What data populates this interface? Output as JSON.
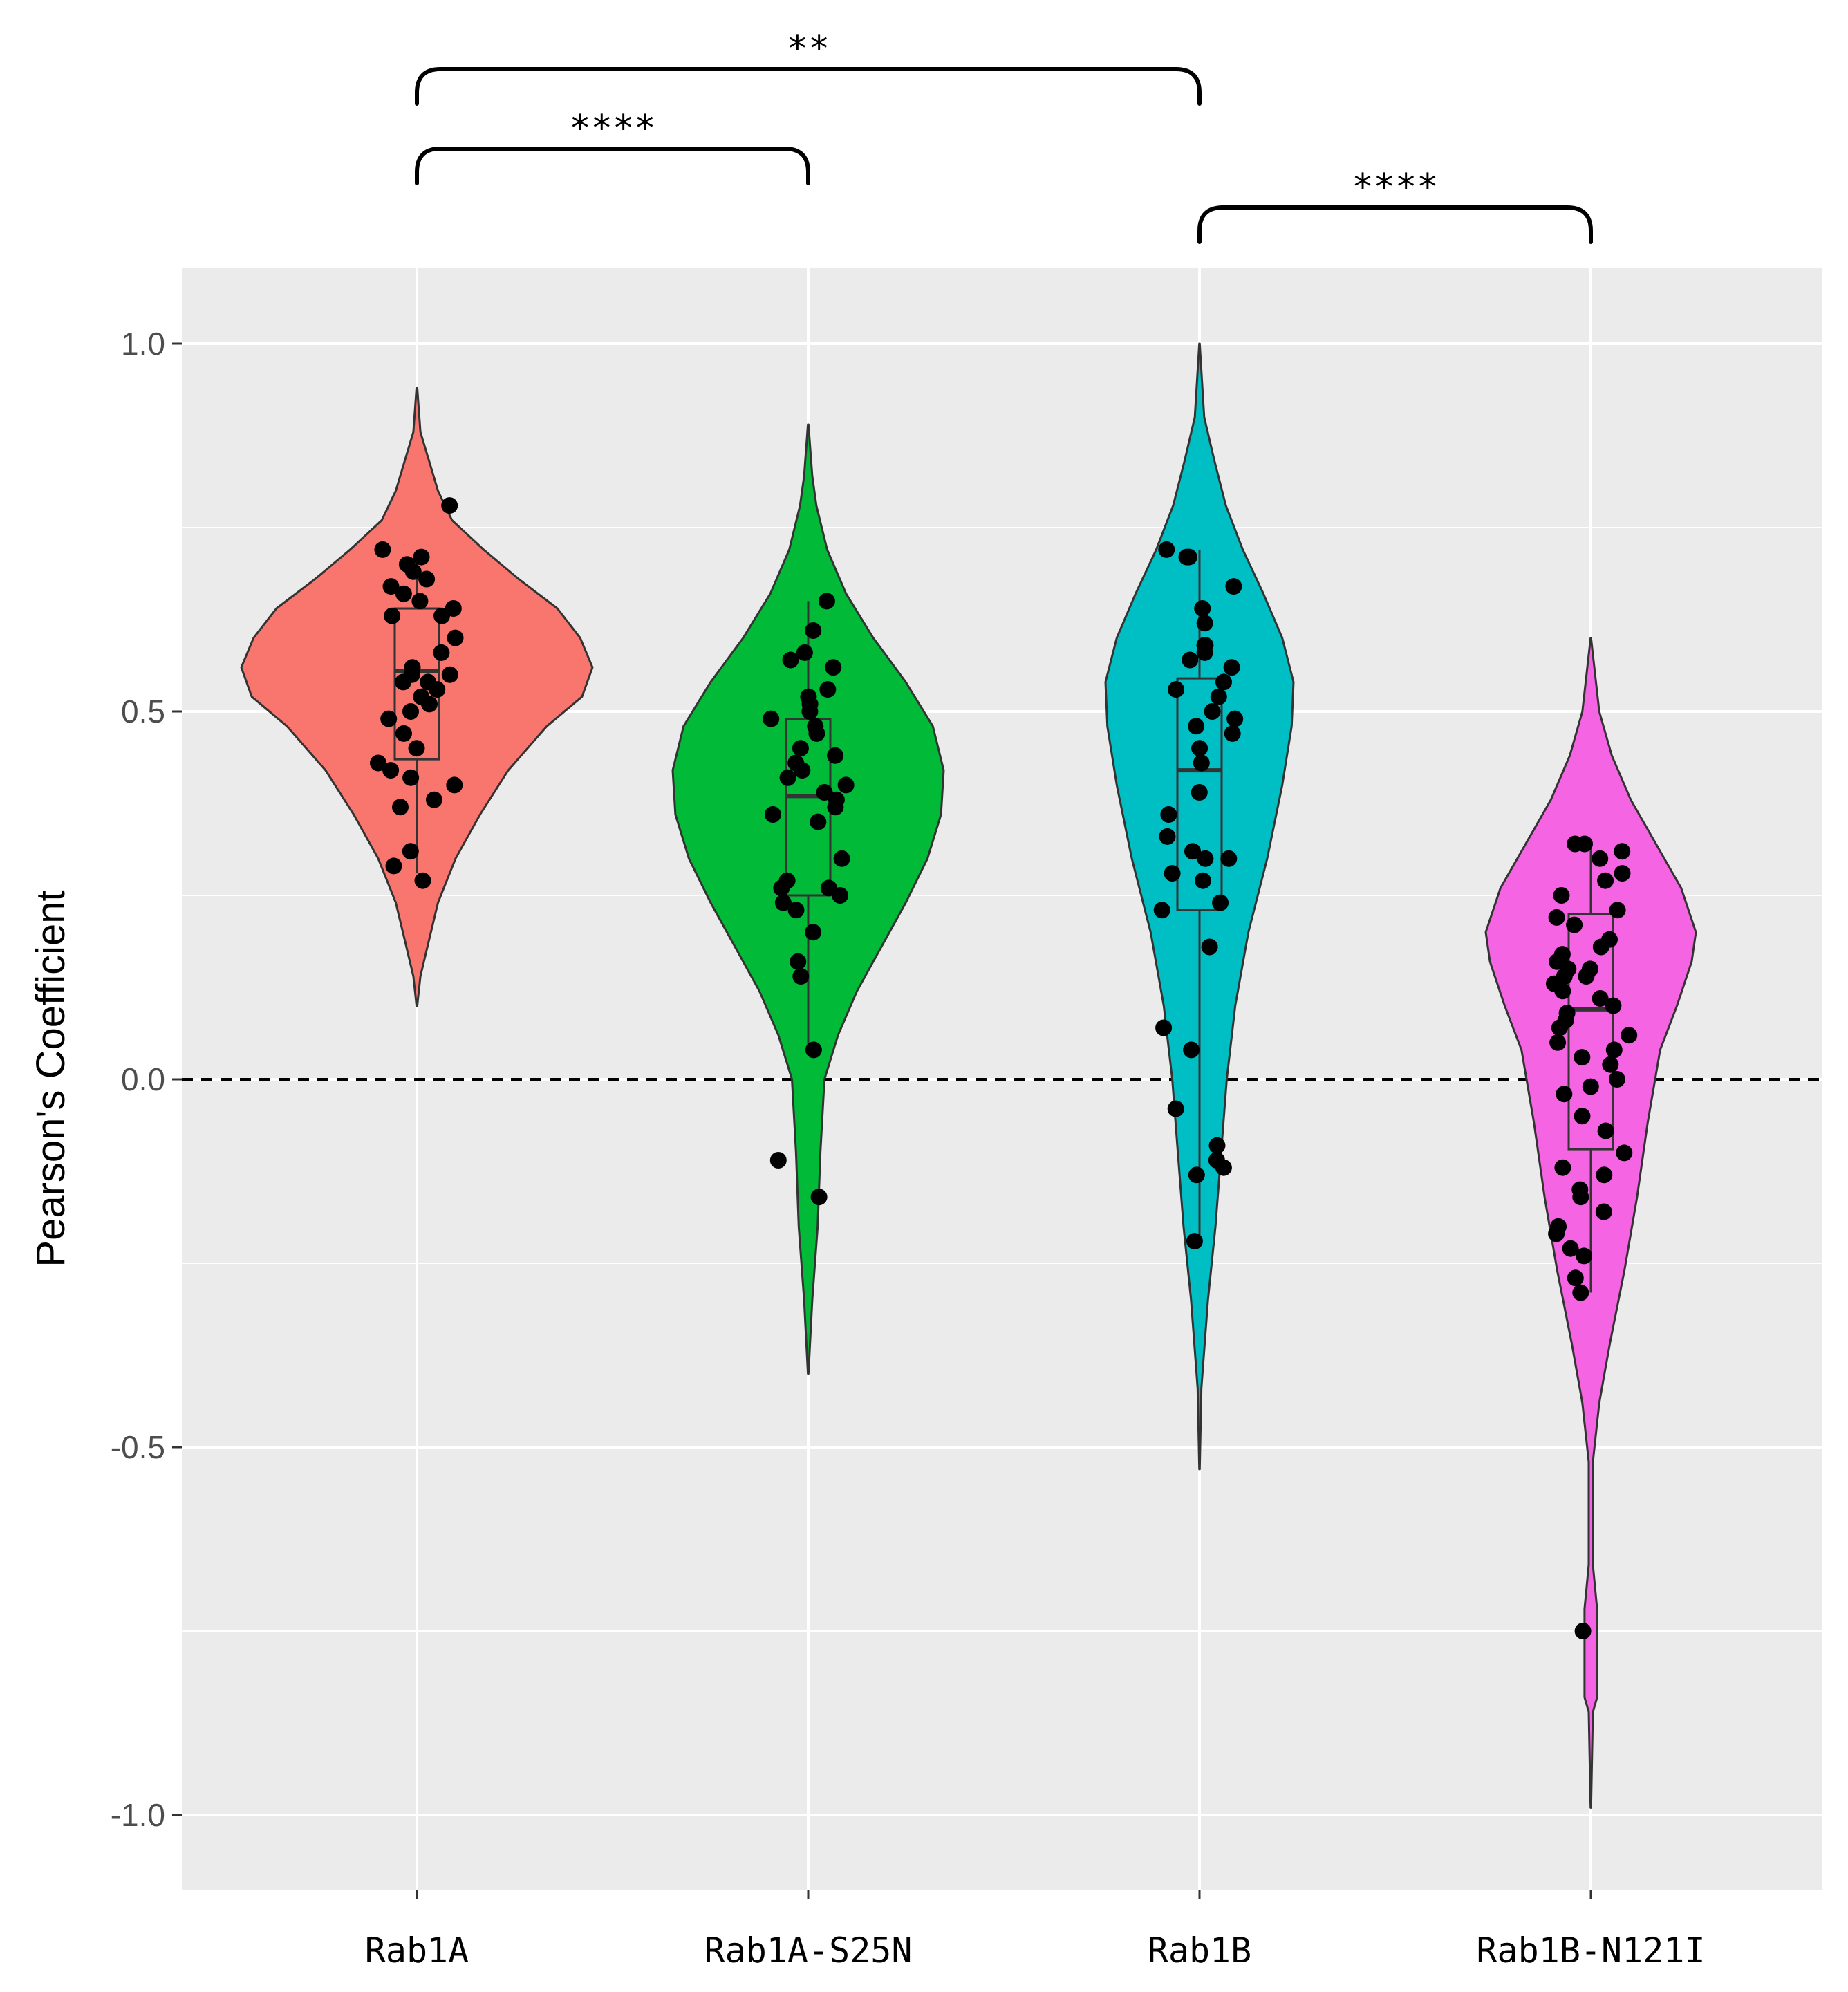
{
  "chart_data": {
    "type": "violin",
    "title": "",
    "xlabel": "",
    "ylabel": "Pearson's Coefficient",
    "ylim": [
      -1.1,
      1.1
    ],
    "yticks": [
      -1.0,
      -0.5,
      0.0,
      0.5,
      1.0
    ],
    "ytick_labels": [
      "-1.0",
      "-0.5",
      "0.0",
      "0.5",
      "1.0"
    ],
    "reference_line": {
      "y": 0.0,
      "style": "dashed",
      "color": "#000000"
    },
    "grid": true,
    "legend": "none",
    "background": "#ebebeb",
    "categories": [
      "Rab1A",
      "Rab1A-S25N",
      "Rab1B",
      "Rab1B-N121I"
    ],
    "groups": [
      {
        "name": "Rab1A",
        "color": "#F8766D",
        "violin_range": [
          0.1,
          0.94
        ],
        "box": {
          "min": 0.28,
          "q1": 0.435,
          "median": 0.555,
          "q3": 0.64,
          "max": 0.72
        },
        "density": [
          [
            0.1,
            0.002
          ],
          [
            0.14,
            0.02
          ],
          [
            0.18,
            0.06
          ],
          [
            0.24,
            0.12
          ],
          [
            0.3,
            0.22
          ],
          [
            0.36,
            0.36
          ],
          [
            0.42,
            0.52
          ],
          [
            0.48,
            0.74
          ],
          [
            0.52,
            0.94
          ],
          [
            0.56,
            1.0
          ],
          [
            0.6,
            0.93
          ],
          [
            0.64,
            0.8
          ],
          [
            0.68,
            0.58
          ],
          [
            0.72,
            0.38
          ],
          [
            0.76,
            0.2
          ],
          [
            0.8,
            0.12
          ],
          [
            0.84,
            0.07
          ],
          [
            0.88,
            0.02
          ],
          [
            0.94,
            0.002
          ]
        ],
        "points": [
          0.78,
          0.72,
          0.71,
          0.7,
          0.69,
          0.68,
          0.67,
          0.66,
          0.65,
          0.64,
          0.63,
          0.63,
          0.6,
          0.58,
          0.56,
          0.55,
          0.55,
          0.54,
          0.54,
          0.53,
          0.52,
          0.51,
          0.5,
          0.49,
          0.47,
          0.45,
          0.43,
          0.42,
          0.41,
          0.4,
          0.38,
          0.37,
          0.31,
          0.29,
          0.27
        ]
      },
      {
        "name": "Rab1A-S25N",
        "color": "#00BA38",
        "violin_range": [
          -0.4,
          0.89
        ],
        "box": {
          "min": 0.04,
          "q1": 0.25,
          "median": 0.385,
          "q3": 0.49,
          "max": 0.65
        },
        "density": [
          [
            -0.4,
            0.002
          ],
          [
            -0.3,
            0.03
          ],
          [
            -0.2,
            0.07
          ],
          [
            -0.1,
            0.09
          ],
          [
            0.0,
            0.12
          ],
          [
            0.06,
            0.22
          ],
          [
            0.12,
            0.36
          ],
          [
            0.18,
            0.54
          ],
          [
            0.24,
            0.72
          ],
          [
            0.3,
            0.88
          ],
          [
            0.36,
            0.98
          ],
          [
            0.42,
            1.0
          ],
          [
            0.48,
            0.92
          ],
          [
            0.54,
            0.72
          ],
          [
            0.6,
            0.48
          ],
          [
            0.66,
            0.28
          ],
          [
            0.72,
            0.14
          ],
          [
            0.78,
            0.06
          ],
          [
            0.82,
            0.03
          ],
          [
            0.89,
            0.002
          ]
        ],
        "points": [
          0.65,
          0.61,
          0.58,
          0.57,
          0.56,
          0.53,
          0.52,
          0.51,
          0.5,
          0.49,
          0.48,
          0.47,
          0.45,
          0.44,
          0.43,
          0.42,
          0.41,
          0.4,
          0.39,
          0.38,
          0.37,
          0.36,
          0.35,
          0.3,
          0.27,
          0.26,
          0.26,
          0.25,
          0.24,
          0.23,
          0.2,
          0.16,
          0.14,
          0.04,
          -0.11,
          -0.16
        ]
      },
      {
        "name": "Rab1B",
        "color": "#00BFC4",
        "violin_range": [
          -0.53,
          1.0
        ],
        "box": {
          "min": -0.22,
          "q1": 0.23,
          "median": 0.42,
          "q3": 0.545,
          "max": 0.72
        },
        "density": [
          [
            -0.53,
            0.002
          ],
          [
            -0.42,
            0.02
          ],
          [
            -0.3,
            0.09
          ],
          [
            -0.2,
            0.17
          ],
          [
            -0.1,
            0.23
          ],
          [
            0.0,
            0.29
          ],
          [
            0.1,
            0.38
          ],
          [
            0.2,
            0.52
          ],
          [
            0.3,
            0.72
          ],
          [
            0.4,
            0.88
          ],
          [
            0.48,
            0.98
          ],
          [
            0.54,
            1.0
          ],
          [
            0.6,
            0.88
          ],
          [
            0.66,
            0.68
          ],
          [
            0.72,
            0.46
          ],
          [
            0.78,
            0.28
          ],
          [
            0.84,
            0.16
          ],
          [
            0.9,
            0.05
          ],
          [
            1.0,
            0.002
          ]
        ],
        "points": [
          0.72,
          0.71,
          0.71,
          0.67,
          0.64,
          0.62,
          0.59,
          0.59,
          0.58,
          0.57,
          0.56,
          0.54,
          0.53,
          0.52,
          0.5,
          0.49,
          0.48,
          0.47,
          0.45,
          0.43,
          0.39,
          0.36,
          0.33,
          0.31,
          0.3,
          0.3,
          0.28,
          0.27,
          0.24,
          0.23,
          0.18,
          0.07,
          0.04,
          -0.04,
          -0.09,
          -0.11,
          -0.12,
          -0.13,
          -0.22
        ]
      },
      {
        "name": "Rab1B-N121I",
        "color": "#F564E3",
        "violin_range": [
          -0.99,
          0.6
        ],
        "box": {
          "min": -0.29,
          "q1": -0.095,
          "median": 0.095,
          "q3": 0.225,
          "max": 0.32
        },
        "density": [
          [
            -0.99,
            0.002
          ],
          [
            -0.86,
            0.02
          ],
          [
            -0.84,
            0.06
          ],
          [
            -0.72,
            0.06
          ],
          [
            -0.66,
            0.02
          ],
          [
            -0.52,
            0.02
          ],
          [
            -0.44,
            0.08
          ],
          [
            -0.36,
            0.18
          ],
          [
            -0.26,
            0.32
          ],
          [
            -0.16,
            0.44
          ],
          [
            -0.06,
            0.54
          ],
          [
            0.04,
            0.66
          ],
          [
            0.1,
            0.82
          ],
          [
            0.16,
            0.96
          ],
          [
            0.2,
            1.0
          ],
          [
            0.26,
            0.86
          ],
          [
            0.32,
            0.62
          ],
          [
            0.38,
            0.38
          ],
          [
            0.44,
            0.2
          ],
          [
            0.5,
            0.08
          ],
          [
            0.6,
            0.002
          ]
        ],
        "points": [
          0.32,
          0.32,
          0.31,
          0.3,
          0.28,
          0.27,
          0.25,
          0.23,
          0.22,
          0.21,
          0.19,
          0.18,
          0.17,
          0.16,
          0.15,
          0.15,
          0.14,
          0.14,
          0.13,
          0.12,
          0.11,
          0.1,
          0.09,
          0.08,
          0.07,
          0.06,
          0.05,
          0.04,
          0.03,
          0.02,
          0.0,
          -0.01,
          -0.02,
          -0.05,
          -0.07,
          -0.1,
          -0.12,
          -0.13,
          -0.15,
          -0.16,
          -0.18,
          -0.2,
          -0.21,
          -0.23,
          -0.24,
          -0.27,
          -0.29,
          -0.75
        ]
      }
    ],
    "significance": [
      {
        "from": "Rab1A",
        "to": "Rab1B",
        "label": "**"
      },
      {
        "from": "Rab1A",
        "to": "Rab1A-S25N",
        "label": "****"
      },
      {
        "from": "Rab1B",
        "to": "Rab1B-N121I",
        "label": "****"
      }
    ]
  }
}
